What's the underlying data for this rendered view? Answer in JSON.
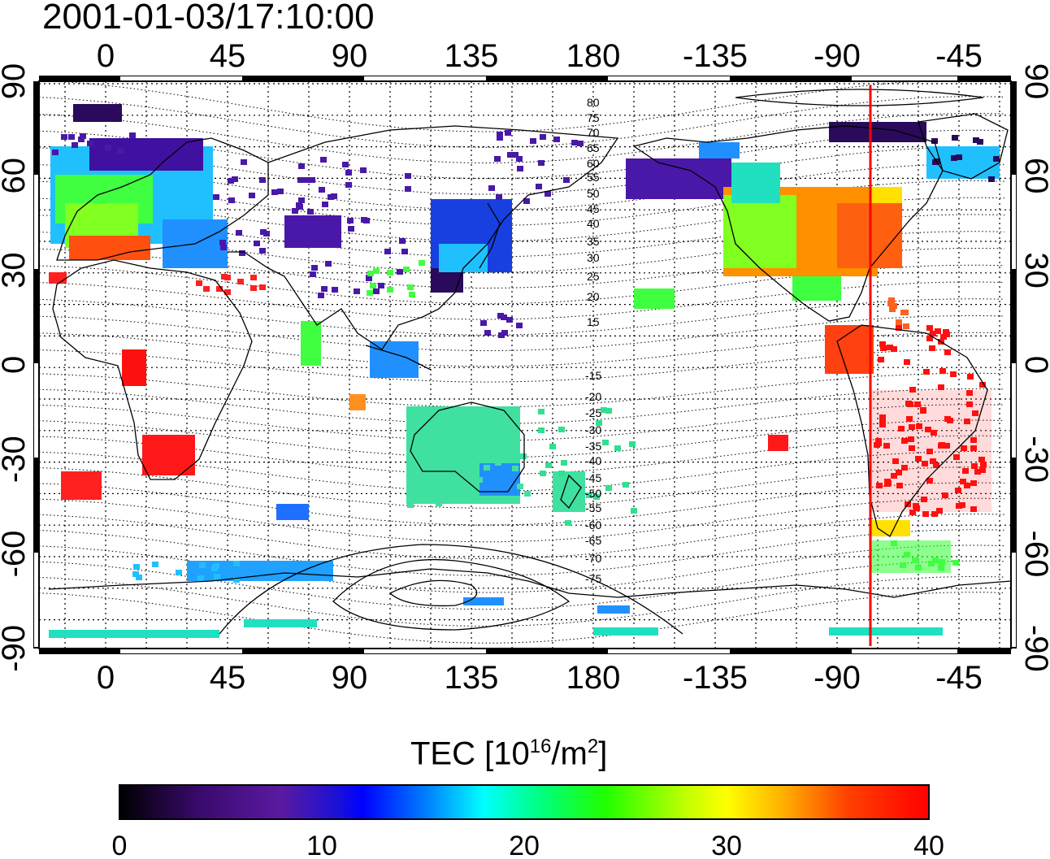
{
  "title": "2001-01-03/17:10:00",
  "map": {
    "top_lon_labels": [
      "0",
      "45",
      "90",
      "135",
      "180",
      "-135",
      "-90",
      "-45"
    ],
    "bottom_lon_labels": [
      "0",
      "45",
      "90",
      "135",
      "180",
      "-135",
      "-90",
      "-45"
    ],
    "lat_labels": [
      "90",
      "60",
      "30",
      "0",
      "-30",
      "-60",
      "-90"
    ],
    "contour_labels_north": [
      "80",
      "75",
      "70",
      "65",
      "60",
      "55",
      "50",
      "45",
      "40",
      "35",
      "30",
      "25",
      "20",
      "15"
    ],
    "contour_labels_south": [
      "-15",
      "-20",
      "-25",
      "-30",
      "-35",
      "-40",
      "-45",
      "-50",
      "-55",
      "-60",
      "-65",
      "-70",
      "-75"
    ],
    "meridian_line_color": "#ff0000"
  },
  "colorbar": {
    "title_prefix": "TEC  [10",
    "title_exp": "16",
    "title_mid": "/m",
    "title_exp2": "2",
    "title_suffix": "]",
    "ticks": [
      "0",
      "10",
      "20",
      "30",
      "40"
    ],
    "colors": [
      "#000000",
      "#3a0a6e",
      "#5a1aa0",
      "#0000ff",
      "#0080ff",
      "#00ffff",
      "#00ff60",
      "#80ff00",
      "#ffff00",
      "#ff9900",
      "#ff0000"
    ]
  }
}
